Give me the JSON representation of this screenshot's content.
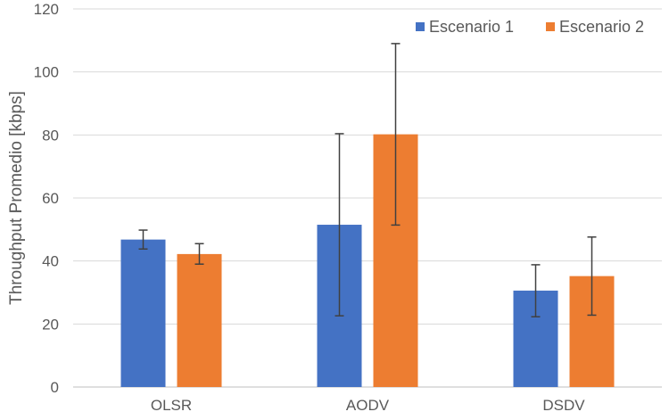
{
  "chart_data": {
    "type": "bar",
    "title": "",
    "xlabel": "",
    "ylabel": "Throughput Promedio [kbps]",
    "ylim": [
      0,
      120
    ],
    "yticks": [
      0,
      20,
      40,
      60,
      80,
      100,
      120
    ],
    "grid": true,
    "legend_position": "top-right",
    "categories": [
      "OLSR",
      "AODV",
      "DSDV"
    ],
    "series": [
      {
        "name": "Escenario 1",
        "color": "#4472C4",
        "values": [
          46.8,
          51.5,
          30.6
        ],
        "error_low": [
          43.8,
          22.6,
          22.3
        ],
        "error_high": [
          49.8,
          80.4,
          38.8
        ]
      },
      {
        "name": "Escenario 2",
        "color": "#ED7D31",
        "values": [
          42.2,
          80.2,
          35.2
        ],
        "error_low": [
          39.0,
          51.4,
          22.8
        ],
        "error_high": [
          45.5,
          109.0,
          47.6
        ]
      }
    ]
  }
}
